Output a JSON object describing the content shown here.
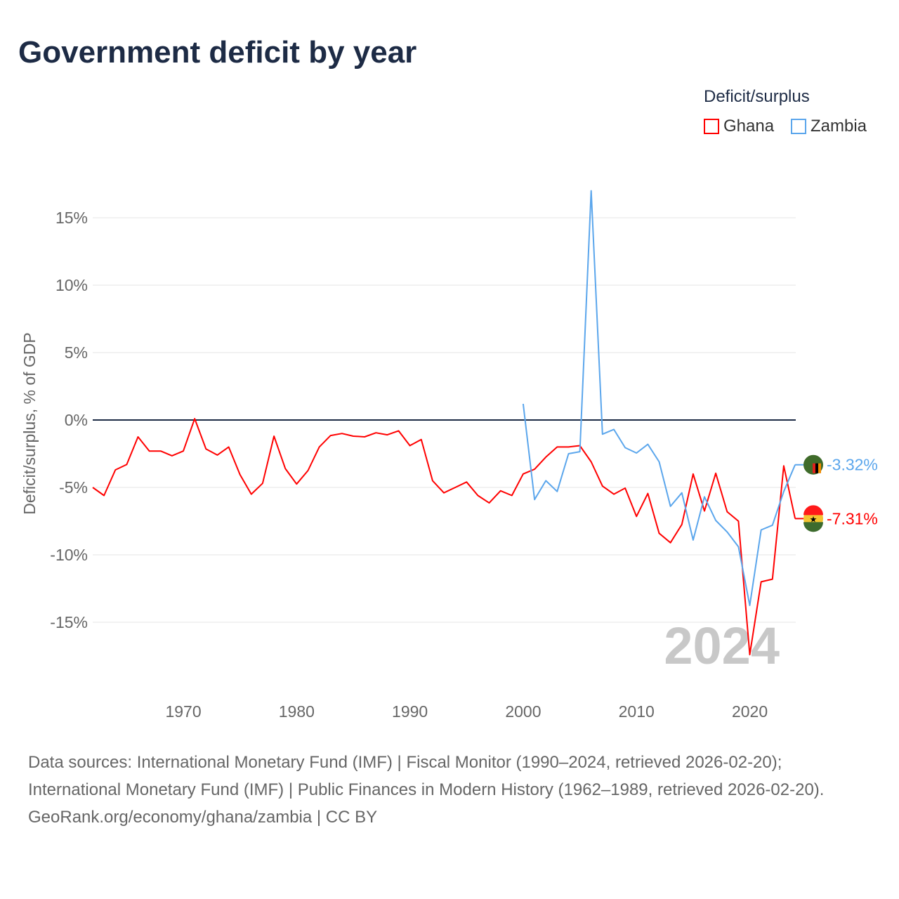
{
  "title": "Government deficit by year",
  "legend": {
    "title": "Deficit/surplus",
    "items": [
      {
        "name": "Ghana",
        "color": "#ff0000"
      },
      {
        "name": "Zambia",
        "color": "#5ba6ec"
      }
    ]
  },
  "footer": {
    "sources": "Data sources: International Monetary Fund (IMF) | Fiscal Monitor (1990–2024, retrieved 2026-02-20); International Monetary Fund (IMF) | Public Finances in Modern History (1962–1989, retrieved 2026-02-20).",
    "credit": "GeoRank.org/economy/ghana/zambia | CC BY"
  },
  "chart_data": {
    "type": "line",
    "title": "Government deficit by year",
    "ylabel": "Deficit/surplus, % of GDP",
    "xlabel": "",
    "watermark_year": "2024",
    "xlim": [
      1962,
      2024
    ],
    "ylim": [
      -17.5,
      17
    ],
    "x_ticks": [
      1970,
      1980,
      1990,
      2000,
      2010,
      2020
    ],
    "y_ticks": [
      {
        "v": 15,
        "label": "15%"
      },
      {
        "v": 10,
        "label": "10%"
      },
      {
        "v": 5,
        "label": "5%"
      },
      {
        "v": 0,
        "label": "0%"
      },
      {
        "v": -5,
        "label": "-5%"
      },
      {
        "v": -10,
        "label": "-10%"
      },
      {
        "v": -15,
        "label": "-15%"
      }
    ],
    "series": [
      {
        "name": "Ghana",
        "color": "#ff0000",
        "end_label": "-7.31%",
        "start": 1962,
        "values": [
          -5.0,
          -5.6,
          -3.7,
          -3.3,
          -1.25,
          -2.3,
          -2.3,
          -2.65,
          -2.3,
          0.1,
          -2.15,
          -2.6,
          -2.0,
          -4.05,
          -5.5,
          -4.7,
          -1.2,
          -3.6,
          -4.75,
          -3.75,
          -2.0,
          -1.15,
          -1.0,
          -1.2,
          -1.25,
          -0.95,
          -1.1,
          -0.8,
          -1.9,
          -1.45,
          -4.5,
          -5.4,
          -5.0,
          -4.6,
          -5.6,
          -6.15,
          -5.25,
          -5.6,
          -4.0,
          -3.65,
          -2.75,
          -2.0,
          -2.0,
          -1.9,
          -3.1,
          -4.9,
          -5.5,
          -5.05,
          -7.15,
          -5.45,
          -8.4,
          -9.1,
          -7.75,
          -4.0,
          -6.75,
          -3.95,
          -6.8,
          -7.5,
          -17.4,
          -12.0,
          -11.8,
          -3.4,
          -7.31
        ]
      },
      {
        "name": "Zambia",
        "color": "#5ba6ec",
        "end_label": "-3.32%",
        "start": 2000,
        "values": [
          1.2,
          -5.9,
          -4.5,
          -5.3,
          -2.5,
          -2.35,
          17.0,
          -1.05,
          -0.7,
          -2.05,
          -2.45,
          -1.8,
          -3.1,
          -6.4,
          -5.4,
          -8.9,
          -5.7,
          -7.45,
          -8.3,
          -9.4,
          -13.75,
          -8.15,
          -7.8,
          -5.3,
          -3.32
        ]
      }
    ]
  }
}
